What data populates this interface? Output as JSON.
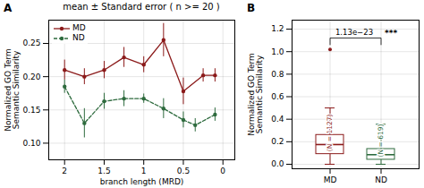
{
  "chart_data": [
    {
      "type": "line",
      "panel_label": "A",
      "title": "mean ± Standard error ( n >= 20 )",
      "xlabel": "branch length (MRD)",
      "ylabel": "Normalized GO Term\nSemantic Similarity",
      "xlim": [
        2.2,
        -0.15
      ],
      "xticks": [
        2,
        1.5,
        1,
        0.5,
        0
      ],
      "ylim": [
        0.075,
        0.285
      ],
      "yticks": [
        {
          "value": 0.1,
          "label": "0.10"
        },
        0.15,
        {
          "value": 0.2,
          "label": "0.20"
        },
        0.25
      ],
      "grid": true,
      "legend": "upper left",
      "series": [
        {
          "name": "MD",
          "color": "#8B1A1A",
          "line_style": "solid",
          "marker": "o",
          "x": [
            2.0,
            1.75,
            1.5,
            1.25,
            1.0,
            0.75,
            0.5,
            0.25,
            0.1
          ],
          "values": [
            0.21,
            0.2,
            0.21,
            0.229,
            0.218,
            0.255,
            0.178,
            0.202,
            0.202
          ],
          "errors": [
            0.015,
            0.012,
            0.013,
            0.015,
            0.012,
            0.025,
            0.02,
            0.01,
            0.01
          ]
        },
        {
          "name": "ND",
          "color": "#2E6B3E",
          "line_style": "dashed",
          "marker": "o",
          "x": [
            2.0,
            1.75,
            1.5,
            1.25,
            1.0,
            0.75,
            0.5,
            0.35,
            0.1
          ],
          "values": [
            0.185,
            0.13,
            0.163,
            0.167,
            0.167,
            0.152,
            0.135,
            0.127,
            0.143
          ],
          "errors": [
            0.01,
            0.022,
            0.012,
            0.012,
            0.007,
            0.015,
            0.012,
            0.01,
            0.01
          ]
        }
      ]
    },
    {
      "type": "box",
      "panel_label": "B",
      "ylabel": "Normalized GO Term\nSemantic Similarity",
      "categories": [
        "MD",
        "ND"
      ],
      "ylim": [
        -0.04,
        1.28
      ],
      "yticks": [
        {
          "value": 0,
          "label": "0.0"
        },
        0.2,
        0.4,
        0.6,
        0.8,
        {
          "value": 1,
          "label": "1.0"
        },
        1.2
      ],
      "grid": true,
      "boxes": [
        {
          "name": "MD",
          "color": "#8B1A1A",
          "median": 0.175,
          "q1": 0.09,
          "q3": 0.26,
          "whisker_low": 0.0,
          "whisker_high": 0.5,
          "outliers": [
            1.02
          ],
          "n_label": "(N = 1127)"
        },
        {
          "name": "ND",
          "color": "#2E6B3E",
          "median": 0.085,
          "q1": 0.04,
          "q3": 0.135,
          "whisker_low": 0.0,
          "whisker_high": 0.355,
          "outliers": [],
          "n_label": "(N = 619)"
        }
      ],
      "annotations": [
        {
          "type": "bracket",
          "between": [
            "MD",
            "ND"
          ],
          "text": "1.13e−23",
          "significance": "***"
        }
      ]
    }
  ]
}
